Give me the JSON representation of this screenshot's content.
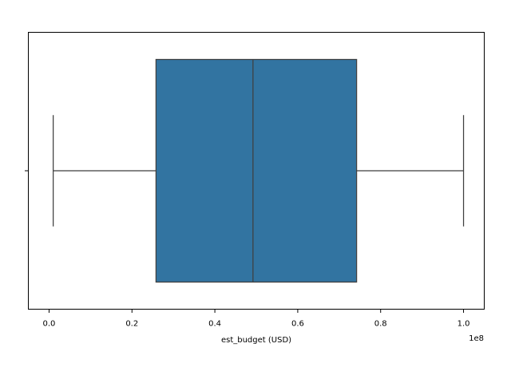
{
  "chart_data": {
    "type": "boxplot",
    "orientation": "horizontal",
    "xlabel": "est_budget (USD)",
    "x_offset_label": "1e8",
    "x_scale": 100000000,
    "xlim": [
      -0.05,
      1.05
    ],
    "x_ticks": [
      0.0,
      0.2,
      0.4,
      0.6,
      0.8,
      1.0
    ],
    "x_tick_labels": [
      "0.0",
      "0.2",
      "0.4",
      "0.6",
      "0.8",
      "1.0"
    ],
    "grid": false,
    "box": {
      "whisker_low": 1000000,
      "q1": 25800000,
      "median": 49200000,
      "q3": 74200000,
      "whisker_high": 100000000,
      "color": "#3274a1",
      "line_color": "#3f3f3f"
    }
  }
}
